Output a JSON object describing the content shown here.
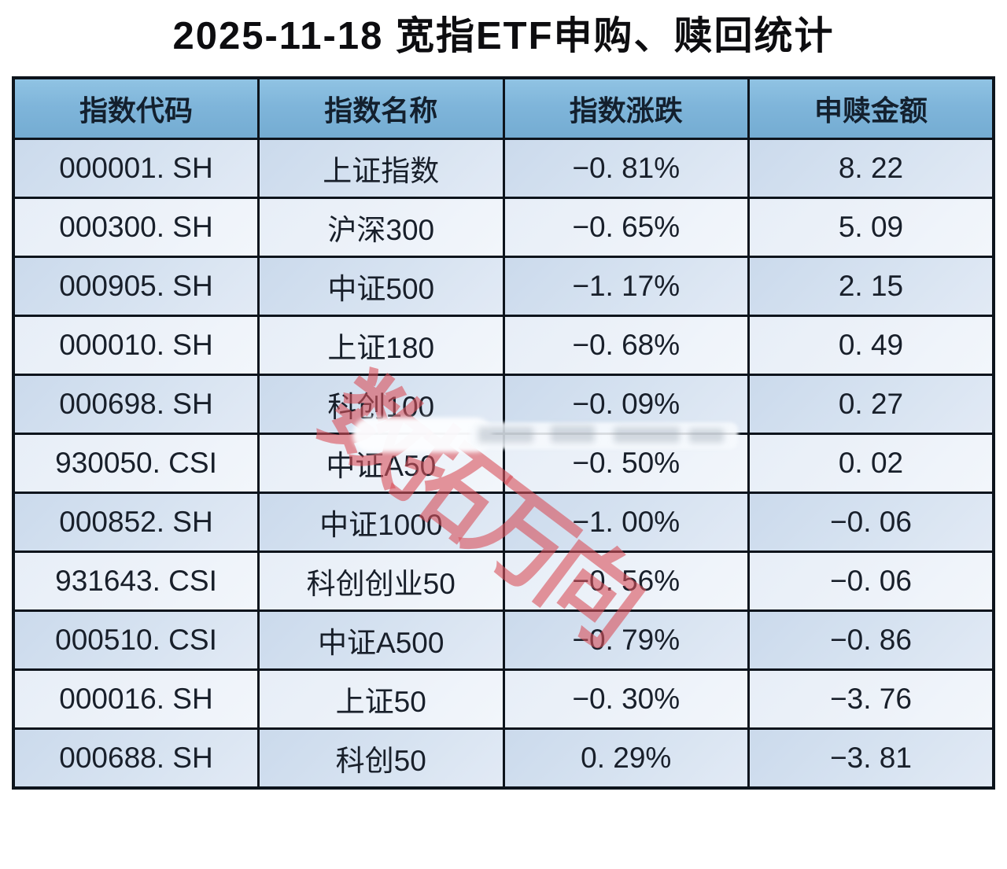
{
  "title": "2025-11-18 宽指ETF申购、赎回统计",
  "colors": {
    "header_bg": "#7fb5da",
    "row_odd_bg": "#d4e1f0",
    "row_even_bg": "#eaf0f8",
    "border": "#0d141c",
    "title_text": "#0d0d10",
    "cell_text": "#181f2a",
    "watermark": "#d9505a"
  },
  "watermark": {
    "text": "数拓万向"
  },
  "table": {
    "headers": [
      "指数代码",
      "指数名称",
      "指数涨跌",
      "申赎金额"
    ],
    "rows": [
      {
        "code": "000001. SH",
        "name": "上证指数",
        "change": "−0. 81%",
        "amount": "8. 22"
      },
      {
        "code": "000300. SH",
        "name": "沪深300",
        "change": "−0. 65%",
        "amount": "5. 09"
      },
      {
        "code": "000905. SH",
        "name": "中证500",
        "change": "−1. 17%",
        "amount": "2. 15"
      },
      {
        "code": "000010. SH",
        "name": "上证180",
        "change": "−0. 68%",
        "amount": "0. 49"
      },
      {
        "code": "000698. SH",
        "name": "科创100",
        "change": "−0. 09%",
        "amount": "0. 27"
      },
      {
        "code": "930050. CSI",
        "name": "中证A50",
        "change": "−0. 50%",
        "amount": "0. 02"
      },
      {
        "code": "000852. SH",
        "name": "中证1000",
        "change": "−1. 00%",
        "amount": "−0. 06"
      },
      {
        "code": "931643. CSI",
        "name": "科创创业50",
        "change": "−0. 56%",
        "amount": "−0. 06"
      },
      {
        "code": "000510. CSI",
        "name": "中证A500",
        "change": "−0. 79%",
        "amount": "−0. 86"
      },
      {
        "code": "000016. SH",
        "name": "上证50",
        "change": "−0. 30%",
        "amount": "−3. 76"
      },
      {
        "code": "000688. SH",
        "name": "科创50",
        "change": "0. 29%",
        "amount": "−3. 81"
      }
    ]
  },
  "chart_data": {
    "type": "table",
    "title": "2025-11-18 宽指ETF申购、赎回统计",
    "columns": [
      "指数代码",
      "指数名称",
      "指数涨跌(%)",
      "申赎金额"
    ],
    "rows": [
      [
        "000001.SH",
        "上证指数",
        -0.81,
        8.22
      ],
      [
        "000300.SH",
        "沪深300",
        -0.65,
        5.09
      ],
      [
        "000905.SH",
        "中证500",
        -1.17,
        2.15
      ],
      [
        "000010.SH",
        "上证180",
        -0.68,
        0.49
      ],
      [
        "000698.SH",
        "科创100",
        -0.09,
        0.27
      ],
      [
        "930050.CSI",
        "中证A50",
        -0.5,
        0.02
      ],
      [
        "000852.SH",
        "中证1000",
        -1.0,
        -0.06
      ],
      [
        "931643.CSI",
        "科创创业50",
        -0.56,
        -0.06
      ],
      [
        "000510.CSI",
        "中证A500",
        -0.79,
        -0.86
      ],
      [
        "000016.SH",
        "上证50",
        -0.3,
        -3.76
      ],
      [
        "000688.SH",
        "科创50",
        0.29,
        -3.81
      ]
    ],
    "layout": {
      "grid": true,
      "header_fill": "#7fb5da",
      "zebra": [
        "#d4e1f0",
        "#eaf0f8"
      ]
    }
  }
}
